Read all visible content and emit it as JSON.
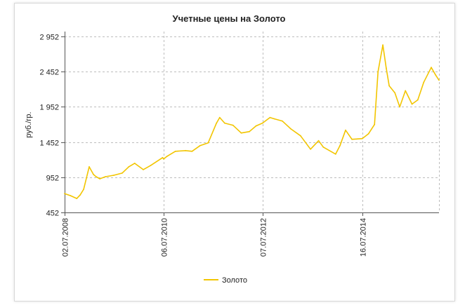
{
  "chart_data": {
    "type": "line",
    "title": "Учетные цены на Золото",
    "ylabel": "руб./гр.",
    "xlabel": "",
    "yticks": [
      "2 952",
      "2 452",
      "1 952",
      "1 452",
      "952",
      "452"
    ],
    "ytick_values": [
      2952,
      2452,
      1952,
      1452,
      952,
      452
    ],
    "xticks": [
      "02.07.2008",
      "06.07.2010",
      "07.07.2012",
      "16.07.2014"
    ],
    "ylim": [
      452,
      3020
    ],
    "xlim": [
      "2008-07-02",
      "2016-02-05"
    ],
    "grid": true,
    "legend_position": "bottom-center",
    "colors": {
      "series": "#f2c500",
      "grid": "#bdbdbd",
      "axis": "#555555"
    },
    "series": [
      {
        "name": "Золото",
        "x": [
          "2008-07-02",
          "2008-08-15",
          "2008-09-30",
          "2008-10-25",
          "2008-11-20",
          "2008-12-31",
          "2009-02-01",
          "2009-02-20",
          "2009-03-20",
          "2009-05-01",
          "2009-07-01",
          "2009-09-01",
          "2009-10-20",
          "2009-12-03",
          "2010-02-05",
          "2010-04-01",
          "2010-06-28",
          "2010-07-06",
          "2010-08-01",
          "2010-10-01",
          "2010-12-15",
          "2011-02-01",
          "2011-04-01",
          "2011-06-01",
          "2011-08-01",
          "2011-08-25",
          "2011-10-01",
          "2011-12-01",
          "2012-02-01",
          "2012-04-01",
          "2012-05-20",
          "2012-07-07",
          "2012-09-01",
          "2012-10-05",
          "2012-12-01",
          "2013-02-01",
          "2013-04-15",
          "2013-06-28",
          "2013-08-27",
          "2013-10-01",
          "2013-12-31",
          "2014-02-01",
          "2014-03-15",
          "2014-05-01",
          "2014-07-16",
          "2014-09-01",
          "2014-10-15",
          "2014-11-10",
          "2014-12-16",
          "2015-01-10",
          "2015-02-01",
          "2015-03-15",
          "2015-04-20",
          "2015-06-01",
          "2015-07-20",
          "2015-09-01",
          "2015-10-15",
          "2015-12-10",
          "2016-01-12",
          "2016-02-05"
        ],
        "y": [
          720,
          690,
          650,
          700,
          780,
          1100,
          990,
          960,
          930,
          960,
          980,
          1010,
          1100,
          1150,
          1060,
          1120,
          1230,
          1210,
          1250,
          1320,
          1330,
          1320,
          1400,
          1440,
          1720,
          1800,
          1720,
          1690,
          1580,
          1600,
          1680,
          1720,
          1800,
          1780,
          1750,
          1640,
          1540,
          1350,
          1470,
          1380,
          1280,
          1400,
          1620,
          1490,
          1500,
          1570,
          1700,
          2450,
          2830,
          2500,
          2250,
          2150,
          1950,
          2180,
          1990,
          2050,
          2300,
          2510,
          2400,
          2330
        ]
      }
    ]
  }
}
